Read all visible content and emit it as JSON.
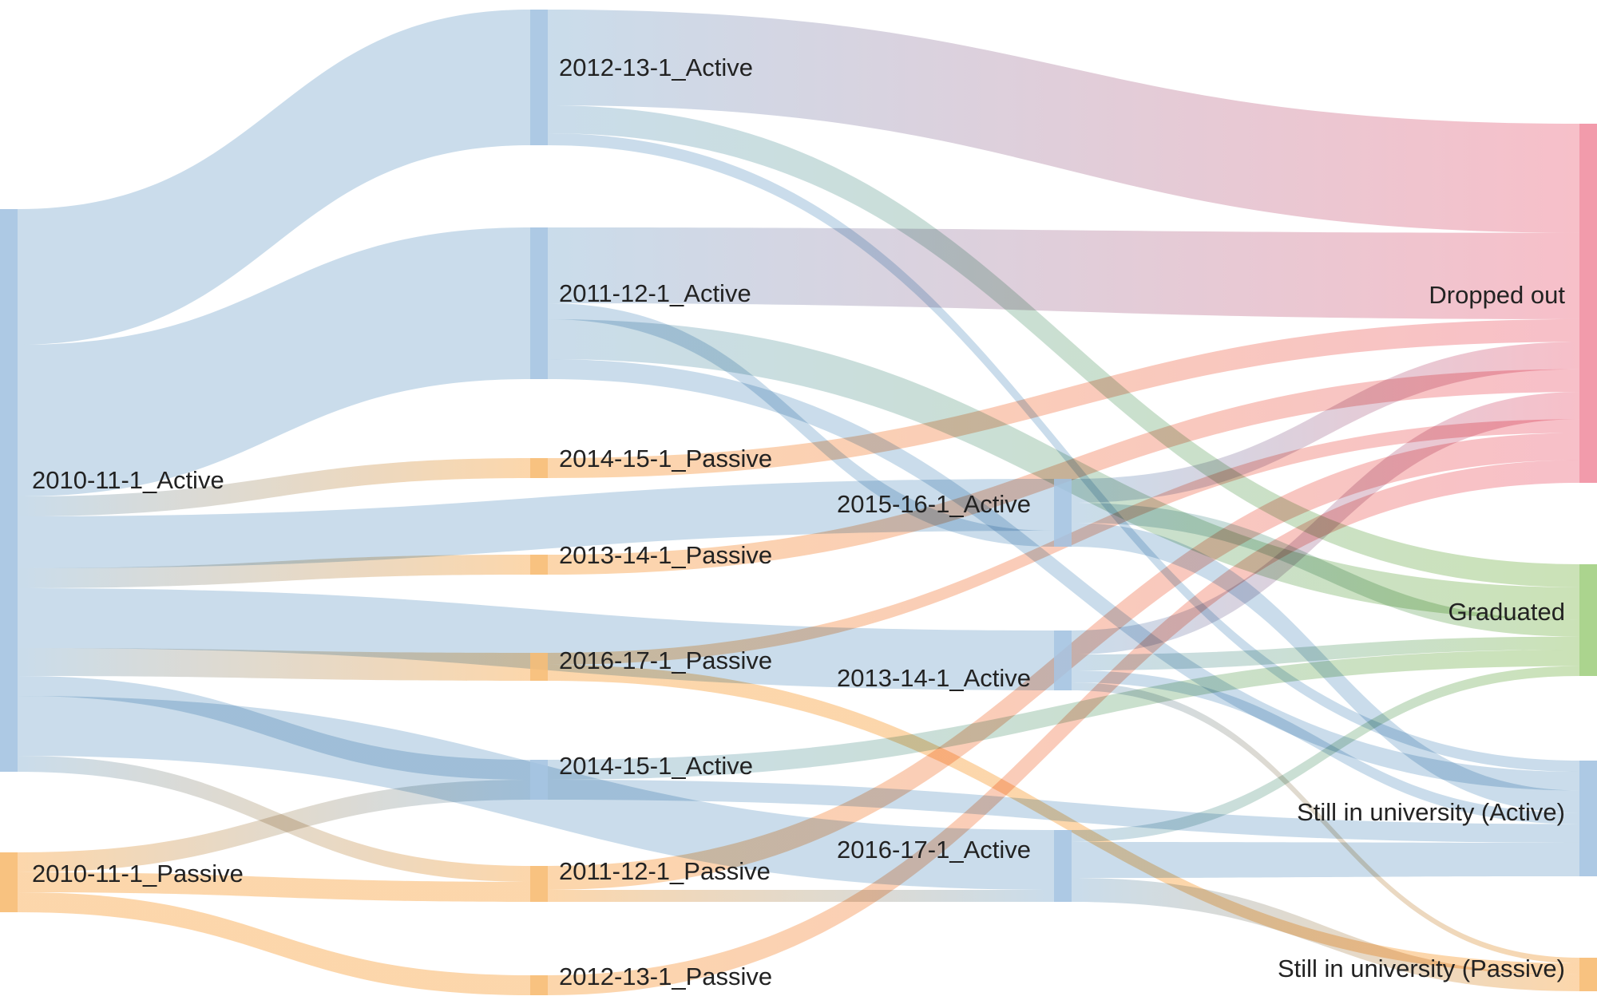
{
  "colors": {
    "active": "#b5cfe3",
    "passive": "#fbc78b",
    "dropped": "#f4a7b4",
    "graduated": "#b7d79b",
    "active_node": "#9fbfdf",
    "passive_node": "#f7b76a",
    "dropped_node": "#f08a9c",
    "graduated_node": "#9ccc7a"
  },
  "chart_data": {
    "type": "sankey",
    "nodes": [
      {
        "id": "a10",
        "label": "2010-11-1_Active",
        "status": "active"
      },
      {
        "id": "p10",
        "label": "2010-11-1_Passive",
        "status": "passive"
      },
      {
        "id": "a12",
        "label": "2012-13-1_Active",
        "status": "active"
      },
      {
        "id": "a11",
        "label": "2011-12-1_Active",
        "status": "active"
      },
      {
        "id": "p14",
        "label": "2014-15-1_Passive",
        "status": "passive"
      },
      {
        "id": "p13",
        "label": "2013-14-1_Passive",
        "status": "passive"
      },
      {
        "id": "p16",
        "label": "2016-17-1_Passive",
        "status": "passive"
      },
      {
        "id": "a14",
        "label": "2014-15-1_Active",
        "status": "active"
      },
      {
        "id": "p11",
        "label": "2011-12-1_Passive",
        "status": "passive"
      },
      {
        "id": "p12",
        "label": "2012-13-1_Passive",
        "status": "passive"
      },
      {
        "id": "a15",
        "label": "2015-16-1_Active",
        "status": "active"
      },
      {
        "id": "a13",
        "label": "2013-14-1_Active",
        "status": "active"
      },
      {
        "id": "a16",
        "label": "2016-17-1_Active",
        "status": "active"
      },
      {
        "id": "drop",
        "label": "Dropped out",
        "status": "dropped"
      },
      {
        "id": "grad",
        "label": "Graduated",
        "status": "graduated"
      },
      {
        "id": "stillA",
        "label": "Still in university (Active)",
        "status": "active"
      },
      {
        "id": "stillP",
        "label": "Still in university (Passive)",
        "status": "passive"
      }
    ],
    "links": [
      {
        "source": "a10",
        "target": "a12",
        "value": 170
      },
      {
        "source": "a10",
        "target": "a11",
        "value": 190
      },
      {
        "source": "a10",
        "target": "p14",
        "value": 25
      },
      {
        "source": "a10",
        "target": "a15",
        "value": 65
      },
      {
        "source": "a10",
        "target": "p13",
        "value": 25
      },
      {
        "source": "a10",
        "target": "a13",
        "value": 75
      },
      {
        "source": "a10",
        "target": "p16",
        "value": 35
      },
      {
        "source": "a10",
        "target": "a14",
        "value": 25
      },
      {
        "source": "a10",
        "target": "a16",
        "value": 75
      },
      {
        "source": "a10",
        "target": "p11",
        "value": 20
      },
      {
        "source": "p10",
        "target": "a14",
        "value": 25
      },
      {
        "source": "p10",
        "target": "p11",
        "value": 25
      },
      {
        "source": "p10",
        "target": "p12",
        "value": 25
      },
      {
        "source": "a12",
        "target": "drop",
        "value": 120
      },
      {
        "source": "a12",
        "target": "grad",
        "value": 35
      },
      {
        "source": "a12",
        "target": "stillA",
        "value": 15
      },
      {
        "source": "a11",
        "target": "drop",
        "value": 95
      },
      {
        "source": "a11",
        "target": "grad",
        "value": 50
      },
      {
        "source": "a11",
        "target": "stillA",
        "value": 25
      },
      {
        "source": "a11",
        "target": "a15",
        "value": 20
      },
      {
        "source": "p14",
        "target": "drop",
        "value": 25
      },
      {
        "source": "p13",
        "target": "drop",
        "value": 25
      },
      {
        "source": "p16",
        "target": "drop",
        "value": 15
      },
      {
        "source": "p16",
        "target": "stillP",
        "value": 20
      },
      {
        "source": "a14",
        "target": "grad",
        "value": 25
      },
      {
        "source": "a14",
        "target": "stillA",
        "value": 25
      },
      {
        "source": "p11",
        "target": "drop",
        "value": 30
      },
      {
        "source": "p11",
        "target": "a16",
        "value": 15
      },
      {
        "source": "p12",
        "target": "drop",
        "value": 25
      },
      {
        "source": "a15",
        "target": "drop",
        "value": 30
      },
      {
        "source": "a15",
        "target": "grad",
        "value": 25
      },
      {
        "source": "a15",
        "target": "stillA",
        "value": 30
      },
      {
        "source": "a13",
        "target": "drop",
        "value": 30
      },
      {
        "source": "a13",
        "target": "grad",
        "value": 20
      },
      {
        "source": "a13",
        "target": "stillA",
        "value": 15
      },
      {
        "source": "a13",
        "target": "stillP",
        "value": 10
      },
      {
        "source": "a16",
        "target": "grad",
        "value": 15
      },
      {
        "source": "a16",
        "target": "stillA",
        "value": 45
      },
      {
        "source": "a16",
        "target": "stillP",
        "value": 30
      }
    ]
  }
}
